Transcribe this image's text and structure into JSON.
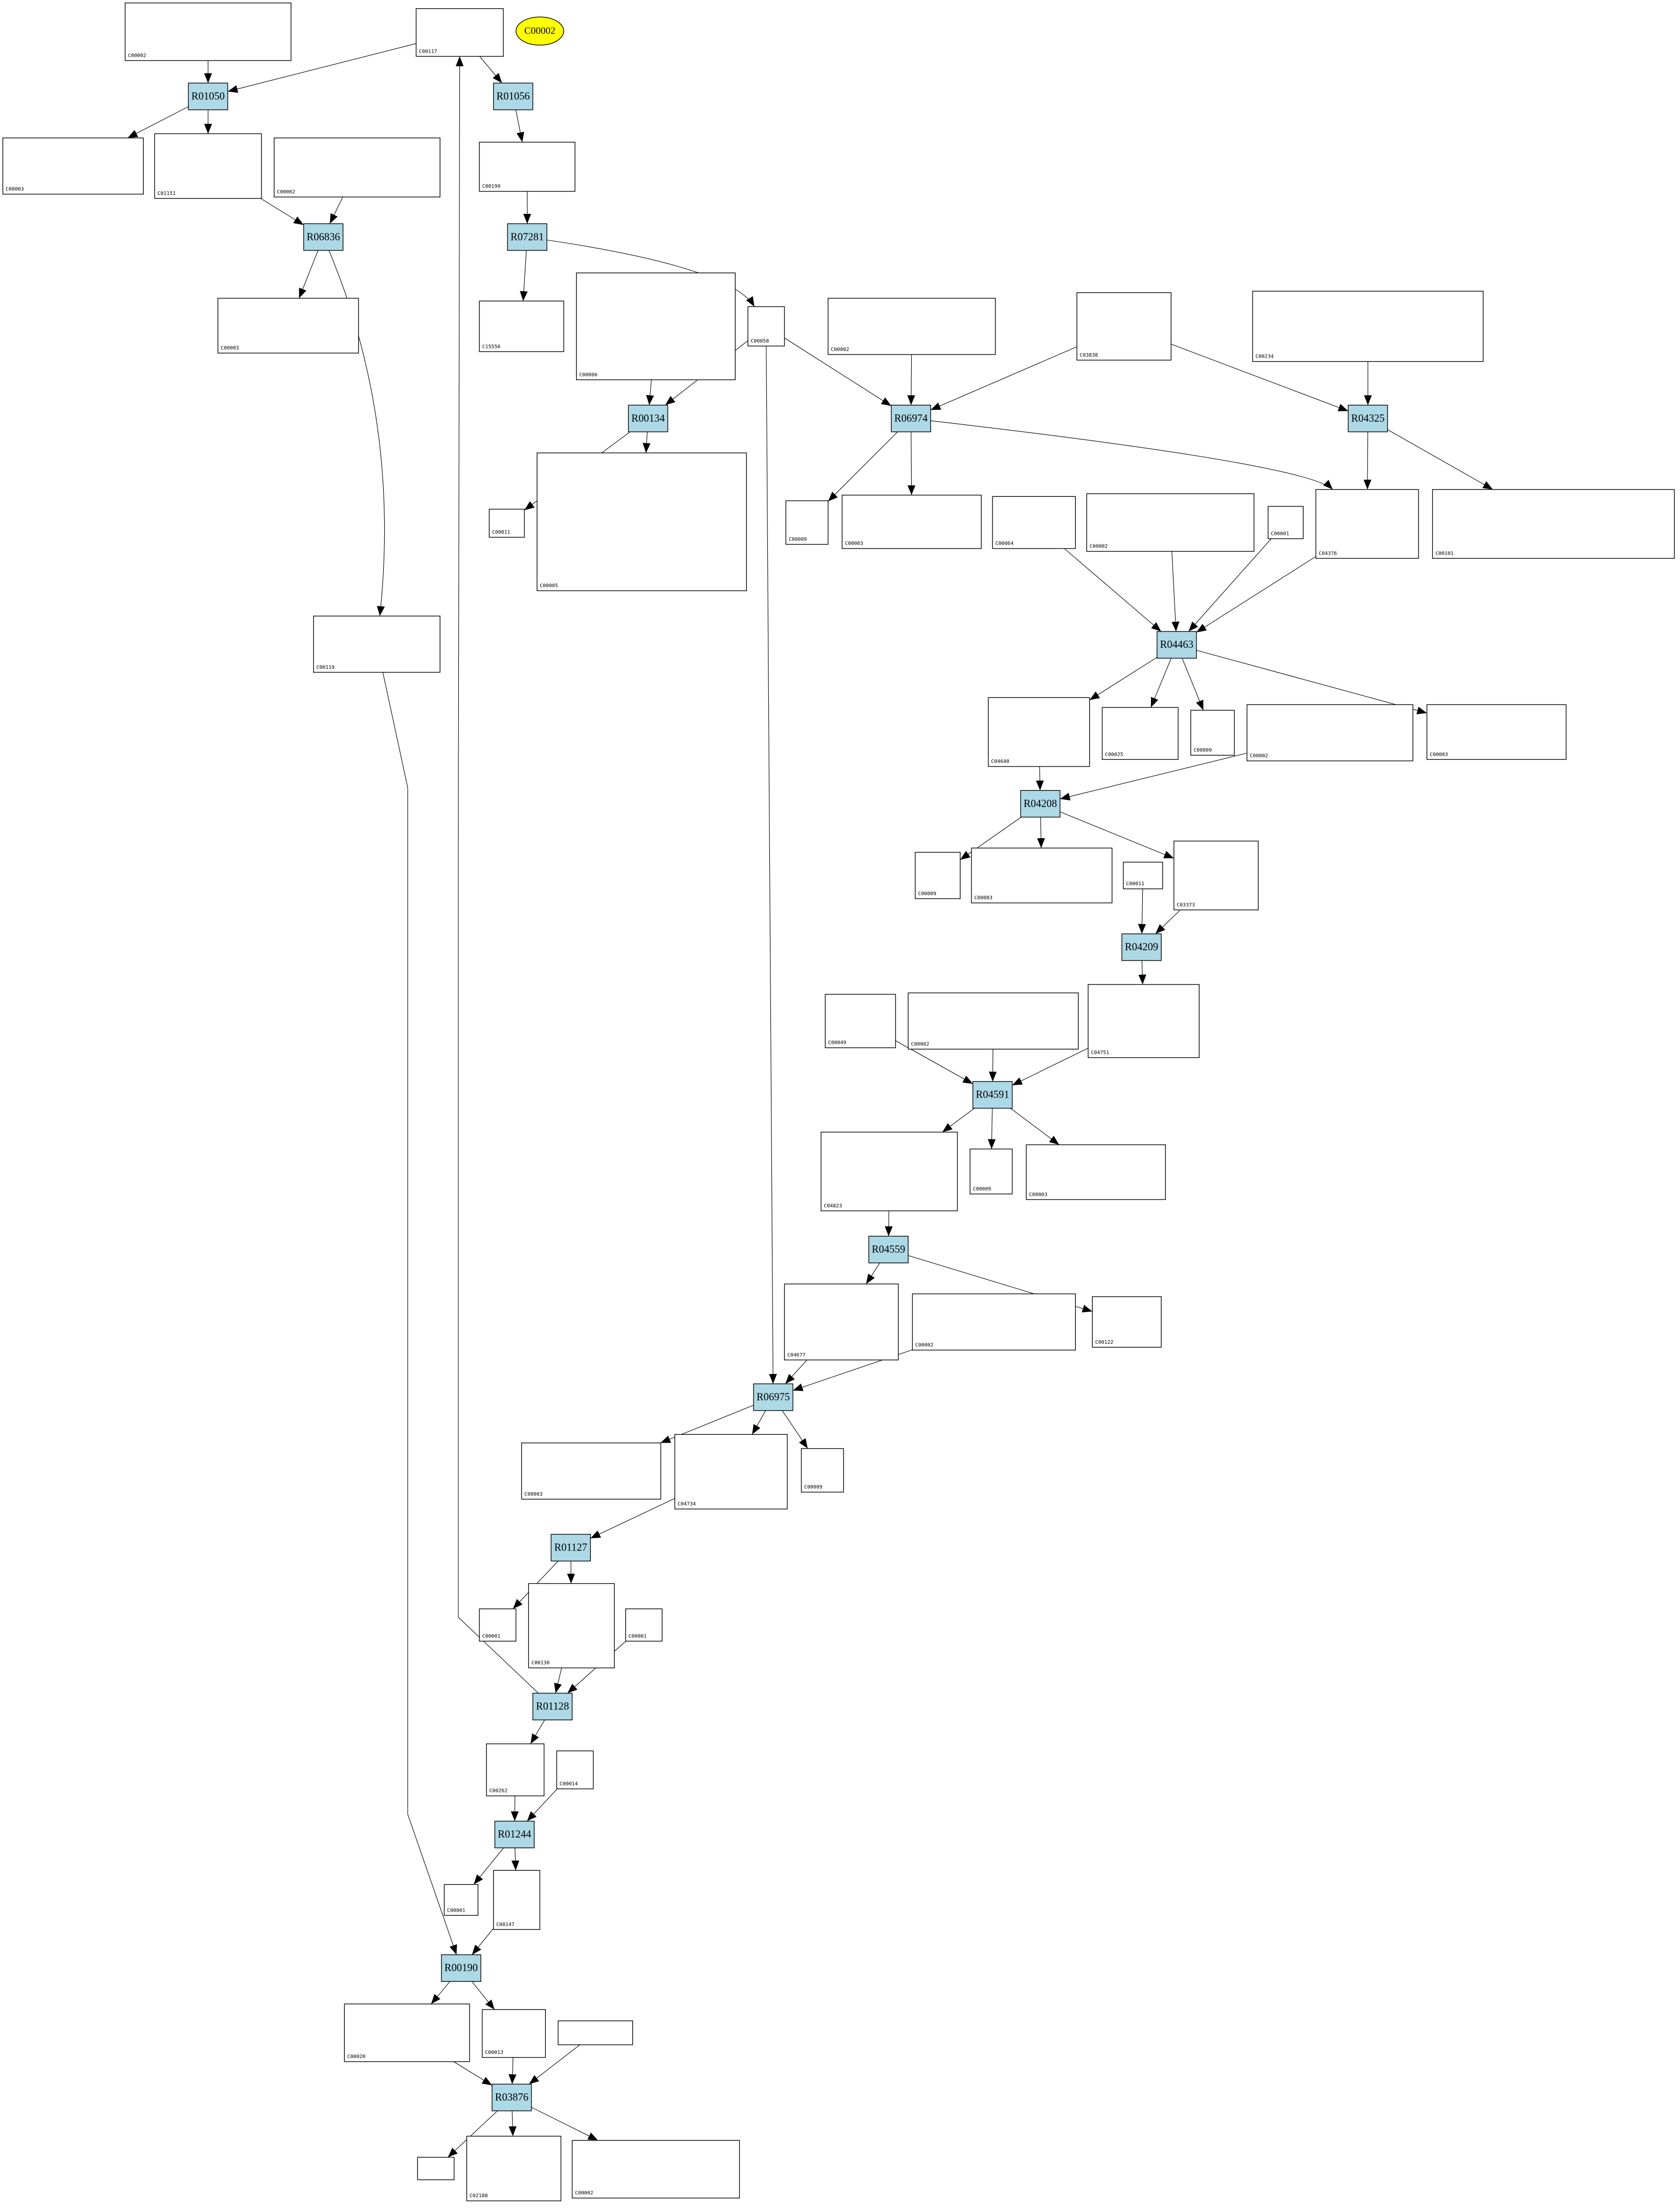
{
  "colors": {
    "reaction_fill": "#add8e6",
    "highlight_fill": "#ffff00",
    "compound_fill": "#ffffff",
    "edge": "#000000"
  },
  "nodes": [
    {
      "label": "C00002",
      "kind": "compound"
    },
    {
      "label": "C00117",
      "kind": "compound"
    },
    {
      "label": "C00002",
      "kind": "highlight"
    },
    {
      "label": "R01050",
      "kind": "reaction"
    },
    {
      "label": "R01056",
      "kind": "reaction"
    },
    {
      "label": "C00003",
      "kind": "compound"
    },
    {
      "label": "C01151",
      "kind": "compound"
    },
    {
      "label": "C00002",
      "kind": "compound"
    },
    {
      "label": "C00199",
      "kind": "compound"
    },
    {
      "label": "R06836",
      "kind": "reaction"
    },
    {
      "label": "R07281",
      "kind": "reaction"
    },
    {
      "label": "C00003",
      "kind": "compound"
    },
    {
      "label": "C15556",
      "kind": "compound"
    },
    {
      "label": "C00006",
      "kind": "compound"
    },
    {
      "label": "C00058",
      "kind": "compound"
    },
    {
      "label": "C00002",
      "kind": "compound"
    },
    {
      "label": "C03838",
      "kind": "compound"
    },
    {
      "label": "C00234",
      "kind": "compound"
    },
    {
      "label": "R00134",
      "kind": "reaction"
    },
    {
      "label": "R06974",
      "kind": "reaction"
    },
    {
      "label": "R04325",
      "kind": "reaction"
    },
    {
      "label": "C00011",
      "kind": "compound"
    },
    {
      "label": "C00005",
      "kind": "compound"
    },
    {
      "label": "C00009",
      "kind": "compound"
    },
    {
      "label": "C00003",
      "kind": "compound"
    },
    {
      "label": "C00064",
      "kind": "compound"
    },
    {
      "label": "C00002",
      "kind": "compound"
    },
    {
      "label": "C00001",
      "kind": "compound"
    },
    {
      "label": "C04376",
      "kind": "compound"
    },
    {
      "label": "C00101",
      "kind": "compound"
    },
    {
      "label": "C00119",
      "kind": "compound"
    },
    {
      "label": "R04463",
      "kind": "reaction"
    },
    {
      "label": "C04640",
      "kind": "compound"
    },
    {
      "label": "C00025",
      "kind": "compound"
    },
    {
      "label": "C00009",
      "kind": "compound"
    },
    {
      "label": "C00002",
      "kind": "compound"
    },
    {
      "label": "C00003",
      "kind": "compound"
    },
    {
      "label": "R04208",
      "kind": "reaction"
    },
    {
      "label": "C00009",
      "kind": "compound"
    },
    {
      "label": "C00003",
      "kind": "compound"
    },
    {
      "label": "C00011",
      "kind": "compound"
    },
    {
      "label": "C03373",
      "kind": "compound"
    },
    {
      "label": "R04209",
      "kind": "reaction"
    },
    {
      "label": "C00049",
      "kind": "compound"
    },
    {
      "label": "C00002",
      "kind": "compound"
    },
    {
      "label": "C04751",
      "kind": "compound"
    },
    {
      "label": "R04591",
      "kind": "reaction"
    },
    {
      "label": "C04823",
      "kind": "compound"
    },
    {
      "label": "C00009",
      "kind": "compound"
    },
    {
      "label": "C00003",
      "kind": "compound"
    },
    {
      "label": "R04559",
      "kind": "reaction"
    },
    {
      "label": "C04677",
      "kind": "compound"
    },
    {
      "label": "C00002",
      "kind": "compound"
    },
    {
      "label": "C00122",
      "kind": "compound"
    },
    {
      "label": "R06975",
      "kind": "reaction"
    },
    {
      "label": "C00003",
      "kind": "compound"
    },
    {
      "label": "C04734",
      "kind": "compound"
    },
    {
      "label": "C00009",
      "kind": "compound"
    },
    {
      "label": "R01127",
      "kind": "reaction"
    },
    {
      "label": "C00001",
      "kind": "compound"
    },
    {
      "label": "C00130",
      "kind": "compound"
    },
    {
      "label": "C00001",
      "kind": "compound"
    },
    {
      "label": "R01128",
      "kind": "reaction"
    },
    {
      "label": "C00262",
      "kind": "compound"
    },
    {
      "label": "C00014",
      "kind": "compound"
    },
    {
      "label": "R01244",
      "kind": "reaction"
    },
    {
      "label": "C00001",
      "kind": "compound"
    },
    {
      "label": "C00147",
      "kind": "compound"
    },
    {
      "label": "R00190",
      "kind": "reaction"
    },
    {
      "label": "C00020",
      "kind": "compound"
    },
    {
      "label": "C00013",
      "kind": "compound"
    },
    {
      "label": "",
      "kind": "compound"
    },
    {
      "label": "R03876",
      "kind": "reaction"
    },
    {
      "label": "",
      "kind": "compound"
    },
    {
      "label": "C02188",
      "kind": "compound"
    },
    {
      "label": "C00002",
      "kind": "compound"
    }
  ],
  "edges": [
    [
      0,
      3
    ],
    [
      1,
      3
    ],
    [
      1,
      4
    ],
    [
      3,
      5
    ],
    [
      3,
      6
    ],
    [
      6,
      9
    ],
    [
      7,
      9
    ],
    [
      9,
      11
    ],
    [
      9,
      30
    ],
    [
      4,
      8
    ],
    [
      8,
      10
    ],
    [
      10,
      12
    ],
    [
      10,
      14
    ],
    [
      13,
      18
    ],
    [
      14,
      18
    ],
    [
      14,
      19
    ],
    [
      14,
      54
    ],
    [
      18,
      21
    ],
    [
      18,
      22
    ],
    [
      15,
      19
    ],
    [
      16,
      19
    ],
    [
      16,
      20
    ],
    [
      17,
      20
    ],
    [
      19,
      23
    ],
    [
      19,
      24
    ],
    [
      19,
      28
    ],
    [
      20,
      28
    ],
    [
      20,
      29
    ],
    [
      25,
      31
    ],
    [
      26,
      31
    ],
    [
      27,
      31
    ],
    [
      28,
      31
    ],
    [
      31,
      32
    ],
    [
      31,
      33
    ],
    [
      31,
      34
    ],
    [
      31,
      36
    ],
    [
      32,
      37
    ],
    [
      35,
      37
    ],
    [
      37,
      38
    ],
    [
      37,
      39
    ],
    [
      37,
      41
    ],
    [
      40,
      42
    ],
    [
      41,
      42
    ],
    [
      42,
      45
    ],
    [
      43,
      46
    ],
    [
      44,
      46
    ],
    [
      45,
      46
    ],
    [
      46,
      47
    ],
    [
      46,
      48
    ],
    [
      46,
      49
    ],
    [
      47,
      50
    ],
    [
      50,
      51
    ],
    [
      50,
      53
    ],
    [
      51,
      54
    ],
    [
      52,
      54
    ],
    [
      54,
      55
    ],
    [
      54,
      56
    ],
    [
      54,
      57
    ],
    [
      56,
      58
    ],
    [
      58,
      59
    ],
    [
      58,
      60
    ],
    [
      60,
      62
    ],
    [
      61,
      62
    ],
    [
      62,
      1
    ],
    [
      62,
      63
    ],
    [
      63,
      65
    ],
    [
      64,
      65
    ],
    [
      65,
      66
    ],
    [
      65,
      67
    ],
    [
      67,
      68
    ],
    [
      30,
      68
    ],
    [
      68,
      69
    ],
    [
      68,
      70
    ],
    [
      69,
      72
    ],
    [
      70,
      72
    ],
    [
      71,
      72
    ],
    [
      72,
      73
    ],
    [
      72,
      74
    ],
    [
      72,
      75
    ]
  ]
}
